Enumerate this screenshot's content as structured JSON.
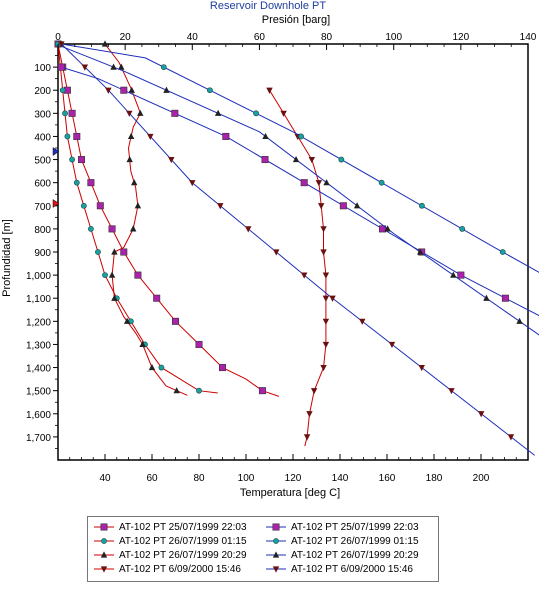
{
  "chart_data": {
    "type": "line",
    "title": "Reservoir Downhole PT",
    "top_axis": {
      "label": "Presión [barg]",
      "range": [
        0,
        140
      ],
      "ticks": [
        "0",
        "20",
        "40",
        "60",
        "80",
        "100",
        "120",
        "140"
      ]
    },
    "bottom_axis": {
      "label": "Temperatura [deg C]",
      "range": [
        20,
        220
      ],
      "ticks": [
        "40",
        "60",
        "80",
        "100",
        "120",
        "140",
        "160",
        "180",
        "200"
      ]
    },
    "y_axis": {
      "label": "Profundidad [m]",
      "range": [
        1800,
        0
      ],
      "ticks": [
        "100",
        "200",
        "300",
        "400",
        "500",
        "600",
        "700",
        "800",
        "900",
        "1,000",
        "1,100",
        "1,200",
        "1,300",
        "1,400",
        "1,500",
        "1,600",
        "1,700"
      ]
    },
    "grid": false,
    "legend_position": "bottom",
    "depth_marker_depths": [
      465,
      690
    ],
    "series": [
      {
        "name": "AT-102 PT 25/07/1999 22:03",
        "kind": "temperature",
        "marker": "square",
        "color": "#cc0000",
        "marker_color": "#aa22aa",
        "points": [
          [
            20,
            0
          ],
          [
            22,
            100
          ],
          [
            24,
            200
          ],
          [
            26,
            300
          ],
          [
            28,
            400
          ],
          [
            30,
            500
          ],
          [
            34,
            600
          ],
          [
            38,
            700
          ],
          [
            43,
            800
          ],
          [
            48,
            900
          ],
          [
            54,
            1000
          ],
          [
            62,
            1100
          ],
          [
            70,
            1200
          ],
          [
            80,
            1300
          ],
          [
            90,
            1400
          ],
          [
            100,
            1450
          ],
          [
            107,
            1500
          ],
          [
            114,
            1525
          ]
        ]
      },
      {
        "name": "AT-102 PT 26/07/1999 01:15",
        "kind": "temperature",
        "marker": "circle",
        "color": "#cc0000",
        "marker_color": "#1aa0a0",
        "points": [
          [
            20,
            0
          ],
          [
            21,
            100
          ],
          [
            22,
            200
          ],
          [
            23,
            300
          ],
          [
            24,
            400
          ],
          [
            26,
            500
          ],
          [
            28,
            600
          ],
          [
            31,
            700
          ],
          [
            34,
            800
          ],
          [
            37,
            900
          ],
          [
            40,
            1000
          ],
          [
            45,
            1100
          ],
          [
            51,
            1200
          ],
          [
            57,
            1300
          ],
          [
            64,
            1400
          ],
          [
            72,
            1450
          ],
          [
            80,
            1500
          ],
          [
            88,
            1510
          ]
        ]
      },
      {
        "name": "AT-102 PT 26/07/1999 20:29",
        "kind": "temperature",
        "marker": "triangle-up",
        "color": "#cc0000",
        "marker_color": "#222222",
        "points": [
          [
            40,
            0
          ],
          [
            46,
            80
          ],
          [
            51,
            190
          ],
          [
            54,
            270
          ],
          [
            55,
            300
          ],
          [
            52,
            360
          ],
          [
            50,
            450
          ],
          [
            51,
            550
          ],
          [
            53,
            620
          ],
          [
            54,
            700
          ],
          [
            52,
            800
          ],
          [
            48,
            880
          ],
          [
            44,
            900
          ],
          [
            43,
            1000
          ],
          [
            44,
            1100
          ],
          [
            48,
            1180
          ],
          [
            53,
            1250
          ],
          [
            56,
            1300
          ],
          [
            60,
            1400
          ],
          [
            66,
            1480
          ],
          [
            75,
            1520
          ]
        ]
      },
      {
        "name": "AT-102 PT 6/09/2000 15:46",
        "kind": "temperature",
        "marker": "triangle-down",
        "color": "#cc0000",
        "marker_color": "#6a1010",
        "points": [
          [
            110,
            200
          ],
          [
            113,
            250
          ],
          [
            116,
            300
          ],
          [
            119,
            350
          ],
          [
            122,
            400
          ],
          [
            125,
            450
          ],
          [
            128,
            500
          ],
          [
            131,
            600
          ],
          [
            132,
            700
          ],
          [
            133,
            800
          ],
          [
            133,
            900
          ],
          [
            134,
            1000
          ],
          [
            134,
            1100
          ],
          [
            134,
            1200
          ],
          [
            134,
            1300
          ],
          [
            133,
            1400
          ],
          [
            131,
            1450
          ],
          [
            129,
            1500
          ],
          [
            127,
            1600
          ],
          [
            126,
            1700
          ],
          [
            125,
            1740
          ]
        ]
      },
      {
        "name": "AT-102 PT 25/07/1999 22:03",
        "kind": "pressure",
        "marker": "square",
        "color": "#1e2fb8",
        "marker_color": "#aa22aa",
        "points": [
          [
            1,
            100
          ],
          [
            12,
            150
          ],
          [
            50,
            400
          ],
          [
            120,
            1000
          ],
          [
            193,
            1550
          ]
        ]
      },
      {
        "name": "AT-102 PT 26/07/1999 01:15",
        "kind": "pressure",
        "marker": "circle",
        "color": "#1e2fb8",
        "marker_color": "#1aa0a0",
        "points": [
          [
            1,
            0
          ],
          [
            26,
            60
          ],
          [
            70,
            380
          ],
          [
            130,
            880
          ],
          [
            210,
            1530
          ]
        ]
      },
      {
        "name": "AT-102 PT 26/07/1999 20:29",
        "kind": "pressure",
        "marker": "triangle-up",
        "color": "#1e2fb8",
        "marker_color": "#222222",
        "points": [
          [
            1,
            10
          ],
          [
            20,
            120
          ],
          [
            60,
            380
          ],
          [
            100,
            820
          ],
          [
            172,
            1550
          ]
        ]
      },
      {
        "name": "AT-102 PT 6/09/2000 15:46",
        "kind": "pressure",
        "marker": "triangle-down",
        "color": "#1e2fb8",
        "marker_color": "#6a1010",
        "points": [
          [
            1,
            0
          ],
          [
            15,
            200
          ],
          [
            40,
            600
          ],
          [
            80,
            1080
          ],
          [
            142,
            1780
          ]
        ]
      }
    ],
    "legend_entries": [
      {
        "label": "AT-102 PT 25/07/1999 22:03",
        "marker": "square",
        "line_color": "#cc0000",
        "marker_color": "#aa22aa"
      },
      {
        "label": "AT-102 PT 25/07/1999 22:03",
        "marker": "square",
        "line_color": "#1e2fb8",
        "marker_color": "#aa22aa"
      },
      {
        "label": "AT-102 PT 26/07/1999 01:15",
        "marker": "circle",
        "line_color": "#cc0000",
        "marker_color": "#1aa0a0"
      },
      {
        "label": "AT-102 PT 26/07/1999 01:15",
        "marker": "circle",
        "line_color": "#1e2fb8",
        "marker_color": "#1aa0a0"
      },
      {
        "label": "AT-102 PT 26/07/1999 20:29",
        "marker": "triangle-up",
        "line_color": "#cc0000",
        "marker_color": "#222222"
      },
      {
        "label": "AT-102 PT 26/07/1999 20:29",
        "marker": "triangle-up",
        "line_color": "#1e2fb8",
        "marker_color": "#222222"
      },
      {
        "label": "AT-102 PT 6/09/2000 15:46",
        "marker": "triangle-down",
        "line_color": "#cc0000",
        "marker_color": "#6a1010"
      },
      {
        "label": "AT-102 PT 6/09/2000 15:46",
        "marker": "triangle-down",
        "line_color": "#1e2fb8",
        "marker_color": "#6a1010"
      }
    ]
  }
}
